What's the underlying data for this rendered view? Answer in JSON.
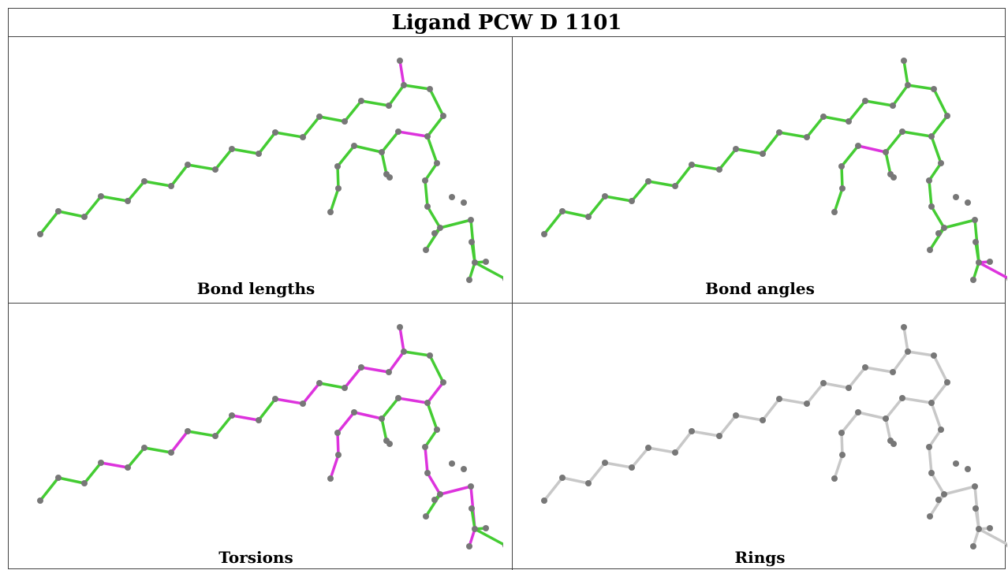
{
  "title": "Ligand PCW D 1101",
  "colors": {
    "ok": "#44cc33",
    "outlier": "#dd33dd",
    "neutral": "#c8c8c8",
    "atom": "#777777"
  },
  "panels": [
    {
      "label": "Bond lengths"
    },
    {
      "label": "Bond angles"
    },
    {
      "label": "Torsions"
    },
    {
      "label": "Rings"
    }
  ]
}
